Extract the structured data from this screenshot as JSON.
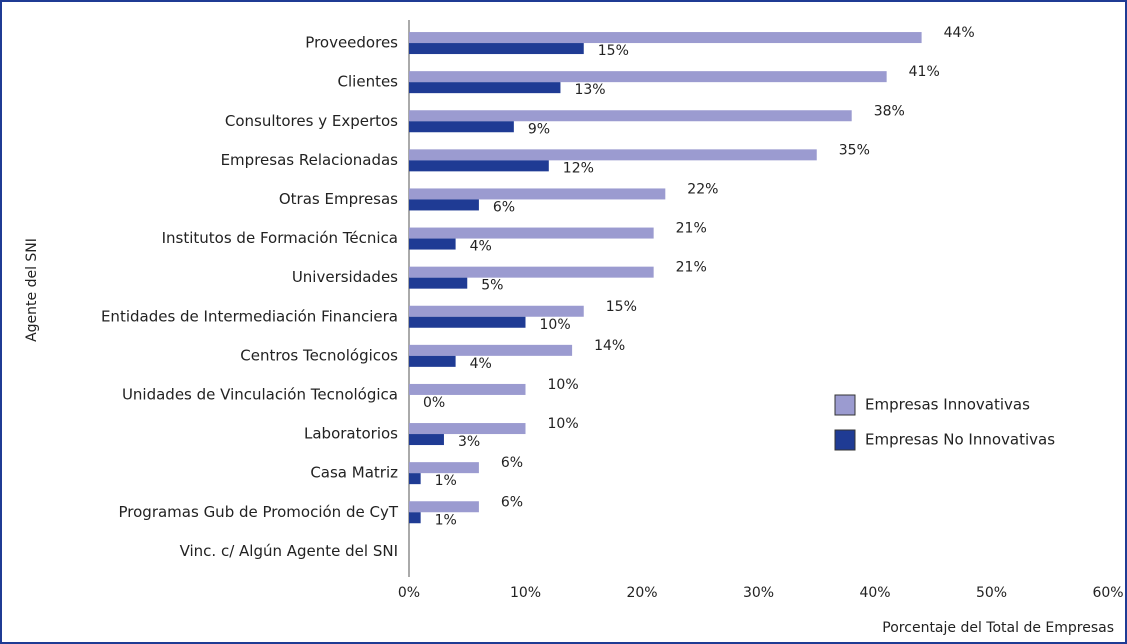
{
  "chart_data": {
    "type": "bar",
    "orientation": "horizontal",
    "xlabel": "Porcentaje del Total de Empresas",
    "ylabel": "Agente del SNI",
    "categories": [
      "Proveedores",
      "Clientes",
      "Consultores y Expertos",
      "Empresas Relacionadas",
      "Otras Empresas",
      "Institutos de Formación Técnica",
      "Universidades",
      "Entidades de Intermediación Financiera",
      "Centros Tecnológicos",
      "Unidades de Vinculación Tecnológica",
      "Laboratorios",
      "Casa Matriz",
      "Programas Gub de Promoción de CyT",
      "Vinc. c/ Algún Agente del SNI"
    ],
    "series": [
      {
        "name": "Empresas Innovativas",
        "color": "#9b9bd0",
        "values": [
          44,
          41,
          38,
          35,
          22,
          21,
          21,
          15,
          14,
          10,
          10,
          6,
          6,
          null
        ],
        "value_labels": [
          "44%",
          "41%",
          "38%",
          "35%",
          "22%",
          "21%",
          "21%",
          "15%",
          "14%",
          "10%",
          "10%",
          "6%",
          "6%",
          null
        ]
      },
      {
        "name": "Empresas No Innovativas",
        "color": "#1f3b94",
        "values": [
          15,
          13,
          9,
          12,
          6,
          4,
          5,
          10,
          4,
          0,
          3,
          1,
          1,
          null
        ],
        "value_labels": [
          "15%",
          "13%",
          "9%",
          "12%",
          "6%",
          "4%",
          "5%",
          "10%",
          "4%",
          "0%",
          "3%",
          "1%",
          "1%",
          null
        ]
      }
    ],
    "xlim": [
      0,
      60
    ],
    "xticks": [
      {
        "value": 0,
        "label": "0%"
      },
      {
        "value": 10,
        "label": "10%"
      },
      {
        "value": 20,
        "label": "20%"
      },
      {
        "value": 30,
        "label": "30%"
      },
      {
        "value": 40,
        "label": "40%"
      },
      {
        "value": 50,
        "label": "50%"
      },
      {
        "value": 60,
        "label": "60%"
      }
    ],
    "grid": false,
    "legend": "right"
  }
}
